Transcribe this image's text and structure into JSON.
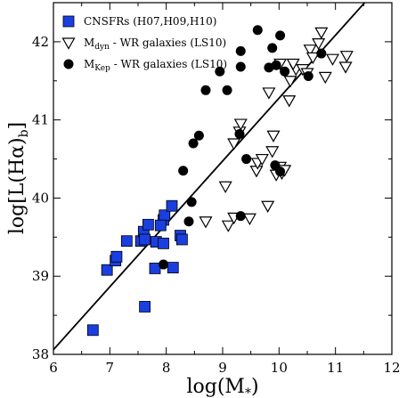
{
  "chart_data": {
    "type": "scatter",
    "title": "",
    "xlabel": "log(M",
    "xlabel_sub": "*",
    "xlabel_close": ")",
    "ylabel": "log[L(Hα)",
    "ylabel_sub": "b",
    "ylabel_close": "]",
    "xlim": [
      6,
      12
    ],
    "ylim": [
      38,
      42.5
    ],
    "x_ticks": [
      "6",
      "7",
      "8",
      "9",
      "10",
      "11",
      "12"
    ],
    "y_ticks": [
      "38",
      "39",
      "40",
      "41",
      "42"
    ],
    "grid": false,
    "legend_position": "top-left",
    "legend": [
      {
        "label": "CNSFRs (H07,H09,H10)",
        "marker": "square"
      },
      {
        "label_main": "M",
        "label_sub": "dyn",
        "label_rest": " - WR galaxies (LS10)",
        "marker": "triangle-down-open"
      },
      {
        "label_main": "M",
        "label_sub": "Kep",
        "label_rest": " - WR galaxies (LS10)",
        "marker": "circle"
      }
    ],
    "series": [
      {
        "marker": "square",
        "color": "#1a3fe0",
        "points": [
          [
            6.7,
            38.31
          ],
          [
            6.95,
            39.08
          ],
          [
            7.1,
            39.2
          ],
          [
            7.12,
            39.25
          ],
          [
            7.3,
            39.45
          ],
          [
            7.55,
            39.45
          ],
          [
            7.6,
            39.57
          ],
          [
            7.62,
            39.47
          ],
          [
            7.68,
            39.66
          ],
          [
            7.62,
            38.61
          ],
          [
            7.8,
            39.1
          ],
          [
            7.82,
            39.44
          ],
          [
            7.95,
            39.42
          ],
          [
            7.95,
            39.72
          ],
          [
            7.97,
            39.78
          ],
          [
            8.1,
            39.9
          ],
          [
            8.12,
            39.11
          ],
          [
            8.25,
            39.52
          ],
          [
            8.28,
            39.47
          ],
          [
            7.9,
            39.65
          ]
        ]
      },
      {
        "marker": "triangle-down-open",
        "color": "#000000",
        "points": [
          [
            8.7,
            39.7
          ],
          [
            9.05,
            40.15
          ],
          [
            9.1,
            39.65
          ],
          [
            9.2,
            39.75
          ],
          [
            9.2,
            40.7
          ],
          [
            9.3,
            40.85
          ],
          [
            9.32,
            40.95
          ],
          [
            9.48,
            39.74
          ],
          [
            9.6,
            40.35
          ],
          [
            9.62,
            40.45
          ],
          [
            9.7,
            40.5
          ],
          [
            9.8,
            39.9
          ],
          [
            9.82,
            41.35
          ],
          [
            9.88,
            40.6
          ],
          [
            9.9,
            40.8
          ],
          [
            9.95,
            40.3
          ],
          [
            10.02,
            40.4
          ],
          [
            10.05,
            40.32
          ],
          [
            10.1,
            40.36
          ],
          [
            10.18,
            41.25
          ],
          [
            10.2,
            41.5
          ],
          [
            10.3,
            41.65
          ],
          [
            10.42,
            41.65
          ],
          [
            10.5,
            41.6
          ],
          [
            10.55,
            41.9
          ],
          [
            10.6,
            41.8
          ],
          [
            10.7,
            41.98
          ],
          [
            10.75,
            42.12
          ],
          [
            10.82,
            41.55
          ],
          [
            10.95,
            41.78
          ],
          [
            11.18,
            41.68
          ],
          [
            11.2,
            41.82
          ],
          [
            10.25,
            41.72
          ],
          [
            10.02,
            41.72
          ]
        ]
      },
      {
        "marker": "circle",
        "color": "#000000",
        "points": [
          [
            7.95,
            39.15
          ],
          [
            8.3,
            40.35
          ],
          [
            8.4,
            39.7
          ],
          [
            8.45,
            39.95
          ],
          [
            8.48,
            40.7
          ],
          [
            8.58,
            40.8
          ],
          [
            8.7,
            41.38
          ],
          [
            8.95,
            41.62
          ],
          [
            9.08,
            41.38
          ],
          [
            9.3,
            40.82
          ],
          [
            9.32,
            41.68
          ],
          [
            9.32,
            41.88
          ],
          [
            9.32,
            39.77
          ],
          [
            9.42,
            40.5
          ],
          [
            9.62,
            42.15
          ],
          [
            9.82,
            41.67
          ],
          [
            9.88,
            41.92
          ],
          [
            9.93,
            40.42
          ],
          [
            9.95,
            41.7
          ],
          [
            10.02,
            40.34
          ],
          [
            10.02,
            42.08
          ],
          [
            10.1,
            41.62
          ],
          [
            10.52,
            41.56
          ],
          [
            10.75,
            41.85
          ]
        ]
      }
    ],
    "fit_line": {
      "x": [
        6,
        11.58
      ],
      "y": [
        38.06,
        42.55
      ]
    }
  }
}
